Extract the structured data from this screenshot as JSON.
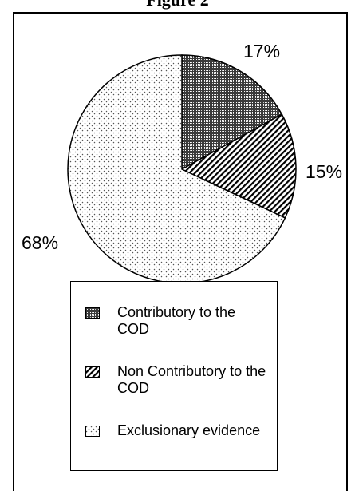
{
  "figure_title": "Figure 2",
  "chart_data": {
    "type": "pie",
    "title": "",
    "legend_position": "bottom",
    "slices": [
      {
        "name": "Contributory to the COD",
        "value": 17,
        "label": "17%",
        "pattern": "dark-checker"
      },
      {
        "name": "Non Contributory to the COD",
        "value": 15,
        "label": "15%",
        "pattern": "diagonal-stripes"
      },
      {
        "name": "Exclusionary evidence",
        "value": 68,
        "label": "68%",
        "pattern": "light-dots"
      }
    ]
  },
  "legend": {
    "items": [
      {
        "label": "Contributory to the COD"
      },
      {
        "label": "Non Contributory to the COD"
      },
      {
        "label": "Exclusionary evidence"
      }
    ]
  }
}
